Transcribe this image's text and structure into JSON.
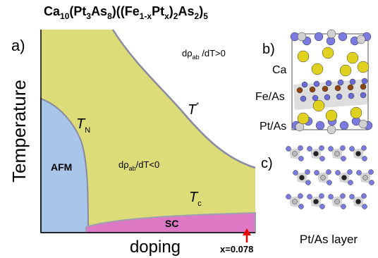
{
  "title": [
    "Ca",
    "10",
    "(Pt",
    "3",
    "As",
    "8",
    ")((Fe",
    "1-x",
    "Pt",
    "x",
    ")",
    "2",
    "As",
    "2",
    ")",
    "5"
  ],
  "panel_a": {
    "label": "a)",
    "y_axis": "Temperature",
    "x_axis": "doping",
    "marker": "x=0.078",
    "regions": {
      "afm": "AFM",
      "sc": "SC",
      "upper": [
        "dρ",
        "ab",
        " /dT>0"
      ],
      "lower": [
        "dρ",
        "ab",
        "/dT<0"
      ]
    },
    "lines": {
      "t_star": [
        "T",
        "*"
      ],
      "t_n": [
        "T",
        "N"
      ],
      "t_c": [
        "T",
        "c"
      ]
    }
  },
  "panel_b": {
    "label": "b)",
    "layers": [
      "Ca",
      "Fe/As",
      "Pt/As"
    ]
  },
  "panel_c": {
    "label": "c)",
    "caption": "Pt/As layer"
  }
}
